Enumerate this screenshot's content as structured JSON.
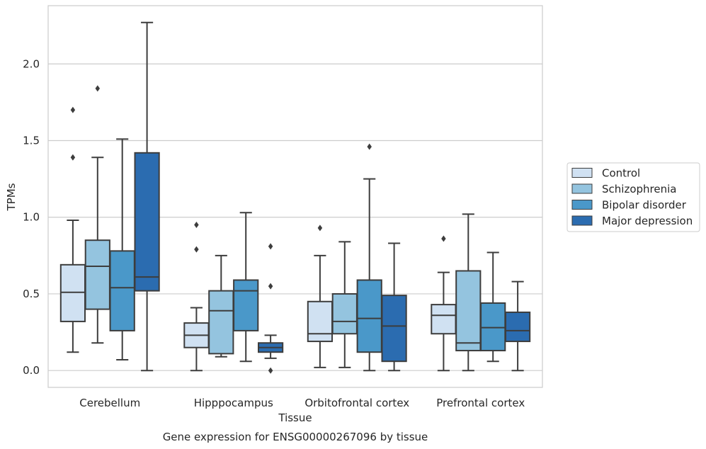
{
  "chart_data": {
    "type": "box",
    "title": "",
    "caption": "Gene expression for ENSG00000267096 by tissue",
    "xlabel": "Tissue",
    "ylabel": "TPMs",
    "ylim": [
      -0.11,
      2.38
    ],
    "yticks": [
      {
        "value": 0.0,
        "label": "0.0"
      },
      {
        "value": 0.5,
        "label": "0.5"
      },
      {
        "value": 1.0,
        "label": "1.0"
      },
      {
        "value": 1.5,
        "label": "1.5"
      },
      {
        "value": 2.0,
        "label": "2.0"
      }
    ],
    "grid": "horizontal",
    "legend_position": "right",
    "categories": [
      "Cerebellum",
      "Hipppocampus",
      "Orbitofrontal cortex",
      "Prefrontal cortex"
    ],
    "series": [
      {
        "name": "Control",
        "color": "#d0e1f2",
        "boxes": [
          {
            "whisker_low": 0.12,
            "q1": 0.32,
            "median": 0.51,
            "q3": 0.69,
            "whisker_high": 0.98,
            "outliers": [
              1.39,
              1.7
            ]
          },
          {
            "whisker_low": 0.0,
            "q1": 0.15,
            "median": 0.23,
            "q3": 0.31,
            "whisker_high": 0.41,
            "outliers": [
              0.79,
              0.95
            ]
          },
          {
            "whisker_low": 0.02,
            "q1": 0.19,
            "median": 0.24,
            "q3": 0.45,
            "whisker_high": 0.75,
            "outliers": [
              0.93
            ]
          },
          {
            "whisker_low": 0.0,
            "q1": 0.24,
            "median": 0.36,
            "q3": 0.43,
            "whisker_high": 0.64,
            "outliers": [
              0.86
            ]
          }
        ]
      },
      {
        "name": "Schizophrenia",
        "color": "#94c4df",
        "boxes": [
          {
            "whisker_low": 0.18,
            "q1": 0.4,
            "median": 0.68,
            "q3": 0.85,
            "whisker_high": 1.39,
            "outliers": [
              1.84
            ]
          },
          {
            "whisker_low": 0.09,
            "q1": 0.11,
            "median": 0.39,
            "q3": 0.52,
            "whisker_high": 0.75,
            "outliers": []
          },
          {
            "whisker_low": 0.02,
            "q1": 0.24,
            "median": 0.32,
            "q3": 0.5,
            "whisker_high": 0.84,
            "outliers": []
          },
          {
            "whisker_low": 0.0,
            "q1": 0.13,
            "median": 0.18,
            "q3": 0.65,
            "whisker_high": 1.02,
            "outliers": []
          }
        ]
      },
      {
        "name": "Bipolar disorder",
        "color": "#4a98c9",
        "boxes": [
          {
            "whisker_low": 0.07,
            "q1": 0.26,
            "median": 0.54,
            "q3": 0.78,
            "whisker_high": 1.51,
            "outliers": []
          },
          {
            "whisker_low": 0.06,
            "q1": 0.26,
            "median": 0.52,
            "q3": 0.59,
            "whisker_high": 1.03,
            "outliers": []
          },
          {
            "whisker_low": 0.0,
            "q1": 0.12,
            "median": 0.34,
            "q3": 0.59,
            "whisker_high": 1.25,
            "outliers": [
              1.46
            ]
          },
          {
            "whisker_low": 0.06,
            "q1": 0.13,
            "median": 0.28,
            "q3": 0.44,
            "whisker_high": 0.77,
            "outliers": []
          }
        ]
      },
      {
        "name": "Major depression",
        "color": "#2b6cb0",
        "boxes": [
          {
            "whisker_low": 0.0,
            "q1": 0.52,
            "median": 0.61,
            "q3": 1.42,
            "whisker_high": 2.27,
            "outliers": []
          },
          {
            "whisker_low": 0.08,
            "q1": 0.12,
            "median": 0.15,
            "q3": 0.18,
            "whisker_high": 0.23,
            "outliers": [
              0.0,
              0.55,
              0.81
            ]
          },
          {
            "whisker_low": 0.0,
            "q1": 0.06,
            "median": 0.29,
            "q3": 0.49,
            "whisker_high": 0.83,
            "outliers": []
          },
          {
            "whisker_low": 0.0,
            "q1": 0.19,
            "median": 0.26,
            "q3": 0.38,
            "whisker_high": 0.58,
            "outliers": []
          }
        ]
      }
    ],
    "colors": {
      "grid": "#cccccc",
      "frame": "#cccccc",
      "box_edge": "#3d3d3d"
    }
  }
}
